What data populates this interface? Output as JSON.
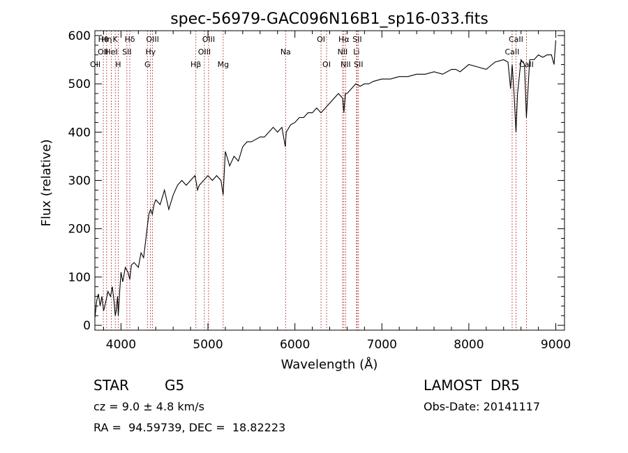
{
  "chart_data": {
    "type": "line",
    "title": "spec-56979-GAC096N16B1_sp16-033.fits",
    "xlabel": "Wavelength (Å)",
    "ylabel": "Flux (relative)",
    "xlim": [
      3700,
      9100
    ],
    "ylim": [
      -10,
      610
    ],
    "xticks": [
      4000,
      5000,
      6000,
      7000,
      8000,
      9000
    ],
    "yticks": [
      0,
      100,
      200,
      300,
      400,
      500,
      600
    ],
    "grid": false,
    "line_color": "#000000",
    "marker_color": "#b03030",
    "series": [
      {
        "x": [
          3700,
          3720,
          3740,
          3760,
          3780,
          3800,
          3820,
          3850,
          3880,
          3900,
          3920,
          3934,
          3945,
          3960,
          3969,
          3985,
          4000,
          4020,
          4050,
          4080,
          4101,
          4120,
          4150,
          4200,
          4230,
          4260,
          4280,
          4300,
          4320,
          4340,
          4360,
          4380,
          4400,
          4450,
          4500,
          4550,
          4600,
          4650,
          4700,
          4750,
          4800,
          4850,
          4861,
          4880,
          4900,
          4950,
          5000,
          5050,
          5100,
          5150,
          5175,
          5200,
          5250,
          5300,
          5350,
          5400,
          5450,
          5500,
          5550,
          5600,
          5650,
          5700,
          5750,
          5800,
          5850,
          5890,
          5900,
          5950,
          6000,
          6050,
          6100,
          6150,
          6200,
          6250,
          6300,
          6350,
          6400,
          6450,
          6500,
          6550,
          6563,
          6580,
          6600,
          6650,
          6700,
          6750,
          6800,
          6850,
          6900,
          7000,
          7100,
          7200,
          7300,
          7400,
          7500,
          7600,
          7700,
          7800,
          7850,
          7900,
          8000,
          8100,
          8200,
          8300,
          8400,
          8450,
          8480,
          8498,
          8520,
          8542,
          8560,
          8600,
          8640,
          8662,
          8700,
          8750,
          8800,
          8850,
          8900,
          8950,
          8980,
          9000
        ],
        "y": [
          15,
          50,
          65,
          40,
          60,
          30,
          45,
          70,
          60,
          80,
          50,
          20,
          30,
          60,
          20,
          70,
          110,
          90,
          120,
          110,
          95,
          125,
          130,
          120,
          150,
          140,
          170,
          200,
          230,
          240,
          230,
          250,
          260,
          250,
          280,
          240,
          270,
          290,
          300,
          290,
          300,
          310,
          300,
          280,
          290,
          300,
          310,
          300,
          310,
          300,
          270,
          360,
          330,
          350,
          340,
          370,
          380,
          380,
          385,
          390,
          390,
          400,
          410,
          400,
          410,
          370,
          400,
          415,
          420,
          430,
          430,
          440,
          440,
          450,
          440,
          450,
          460,
          470,
          480,
          470,
          440,
          480,
          480,
          490,
          500,
          495,
          500,
          500,
          505,
          510,
          510,
          515,
          515,
          520,
          520,
          525,
          520,
          530,
          530,
          525,
          540,
          535,
          530,
          545,
          550,
          545,
          490,
          540,
          480,
          400,
          480,
          550,
          540,
          430,
          550,
          550,
          560,
          555,
          560,
          560,
          540,
          590
        ]
      }
    ],
    "line_markers": [
      {
        "x": 3797,
        "labels": [
          "Hθ"
        ],
        "row": 0
      },
      {
        "x": 3835,
        "labels": [
          "Hη"
        ],
        "row": 0
      },
      {
        "x": 3889,
        "labels": [
          "HeI"
        ],
        "row": 1
      },
      {
        "x": 3934,
        "labels": [
          "K"
        ],
        "row": 0
      },
      {
        "x": 3968,
        "labels": [
          "H"
        ],
        "row": 2
      },
      {
        "x": 4101,
        "labels": [
          "Hδ"
        ],
        "row": 0
      },
      {
        "x": 4068,
        "labels": [
          "SII"
        ],
        "row": 1
      },
      {
        "x": 4304,
        "labels": [
          "G"
        ],
        "row": 2
      },
      {
        "x": 4340,
        "labels": [
          "Hγ"
        ],
        "row": 1
      },
      {
        "x": 4363,
        "labels": [
          "OIII"
        ],
        "row": 0
      },
      {
        "x": 4861,
        "labels": [
          "Hβ"
        ],
        "row": 2
      },
      {
        "x": 4959,
        "labels": [
          "OIII"
        ],
        "row": 1
      },
      {
        "x": 5007,
        "labels": [
          "OIII"
        ],
        "row": 0
      },
      {
        "x": 5175,
        "labels": [
          "Mg"
        ],
        "row": 2
      },
      {
        "x": 5893,
        "labels": [
          "Na"
        ],
        "row": 1
      },
      {
        "x": 6300,
        "labels": [
          "OI"
        ],
        "row": 0
      },
      {
        "x": 6364,
        "labels": [
          "OI"
        ],
        "row": 2
      },
      {
        "x": 6548,
        "labels": [
          "NII"
        ],
        "row": 1
      },
      {
        "x": 6563,
        "labels": [
          "Hα"
        ],
        "row": 0
      },
      {
        "x": 6583,
        "labels": [
          "NII"
        ],
        "row": 2
      },
      {
        "x": 6708,
        "labels": [
          "Li"
        ],
        "row": 1
      },
      {
        "x": 6716,
        "labels": [
          "SII"
        ],
        "row": 0
      },
      {
        "x": 6731,
        "labels": [
          "SII"
        ],
        "row": 2
      },
      {
        "x": 8498,
        "labels": [
          "CaII"
        ],
        "row": 1
      },
      {
        "x": 8542,
        "labels": [
          "CaII"
        ],
        "row": 0
      },
      {
        "x": 8662,
        "labels": [
          "CaII"
        ],
        "row": 2
      }
    ],
    "oii_label": "OII",
    "oii_label2": "OII"
  },
  "info": {
    "class": "STAR",
    "subclass": "G5",
    "survey": "LAMOST  DR5",
    "cz": "cz = 9.0 ± 4.8 km/s",
    "obs_date": "Obs-Date: 20141117",
    "radec": "RA =  94.59739, DEC =  18.82223"
  }
}
